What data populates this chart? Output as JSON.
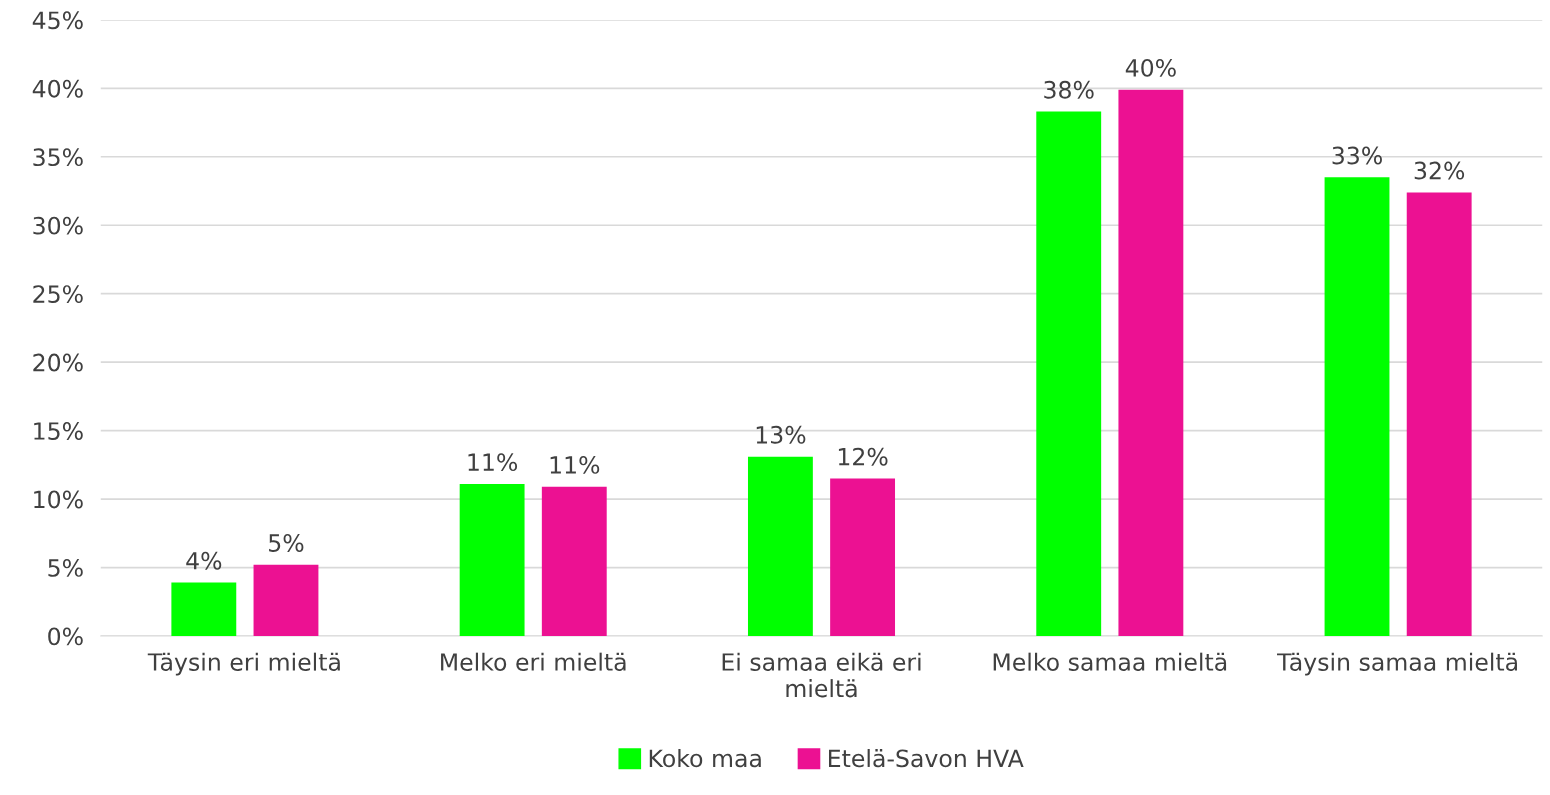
{
  "chart_data": {
    "type": "bar",
    "categories": [
      "Täysin eri mieltä",
      "Melko eri mieltä",
      "Ei samaa eikä eri mieltä",
      "Melko samaa mieltä",
      "Täysin samaa mieltä"
    ],
    "series": [
      {
        "name": "Koko maa",
        "color": "#00ff00",
        "values": [
          3.9,
          11.1,
          13.1,
          38.3,
          33.5
        ],
        "value_labels": [
          "4%",
          "11%",
          "13%",
          "38%",
          "33%"
        ]
      },
      {
        "name": "Etelä-Savon HVA",
        "color": "#ec1192",
        "values": [
          5.2,
          10.9,
          11.5,
          39.9,
          32.4
        ],
        "value_labels": [
          "5%",
          "11%",
          "12%",
          "40%",
          "32%"
        ]
      }
    ],
    "ylim": [
      0,
      45
    ],
    "yticks": [
      {
        "value": 0,
        "label": "0%"
      },
      {
        "value": 5,
        "label": "5%"
      },
      {
        "value": 10,
        "label": "10%"
      },
      {
        "value": 15,
        "label": "15%"
      },
      {
        "value": 20,
        "label": "20%"
      },
      {
        "value": 25,
        "label": "25%"
      },
      {
        "value": 30,
        "label": "30%"
      },
      {
        "value": 35,
        "label": "35%"
      },
      {
        "value": 40,
        "label": "40%"
      },
      {
        "value": 45,
        "label": "45%"
      }
    ],
    "grid": "y",
    "legend": "bottom"
  }
}
